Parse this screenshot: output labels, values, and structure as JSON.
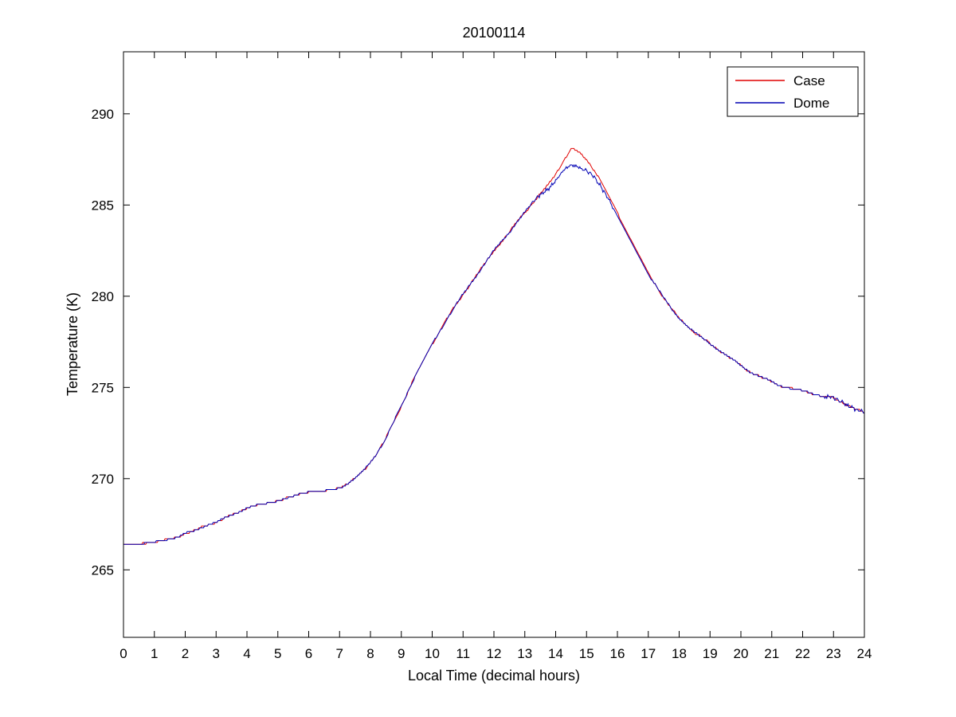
{
  "chart_data": {
    "type": "line",
    "title": "20100114",
    "xlabel": "Local Time (decimal hours)",
    "ylabel": "Temperature (K)",
    "xlim": [
      0,
      24
    ],
    "ylim": [
      261.3,
      293.4
    ],
    "grid": false,
    "quantization_step_k": 0.1,
    "xticks": [
      0,
      1,
      2,
      3,
      4,
      5,
      6,
      7,
      8,
      9,
      10,
      11,
      12,
      13,
      14,
      15,
      16,
      17,
      18,
      19,
      20,
      21,
      22,
      23,
      24
    ],
    "yticks": [
      265,
      270,
      275,
      280,
      285,
      290
    ],
    "legend": {
      "position": "top-right",
      "entries": [
        {
          "label": "Case",
          "color": "#e00000"
        },
        {
          "label": "Dome",
          "color": "#0000b4"
        }
      ]
    },
    "x": [
      0,
      0.25,
      0.5,
      0.75,
      1,
      1.25,
      1.5,
      1.75,
      2,
      2.25,
      2.5,
      2.75,
      3,
      3.25,
      3.5,
      3.75,
      4,
      4.25,
      4.5,
      4.75,
      5,
      5.25,
      5.5,
      5.75,
      6,
      6.25,
      6.5,
      6.75,
      7,
      7.25,
      7.5,
      7.75,
      8,
      8.25,
      8.5,
      8.75,
      9,
      9.25,
      9.5,
      9.75,
      10,
      10.25,
      10.5,
      10.75,
      11,
      11.25,
      11.5,
      11.75,
      12,
      12.25,
      12.5,
      12.75,
      13,
      13.25,
      13.5,
      13.75,
      14,
      14.25,
      14.5,
      14.75,
      15,
      15.25,
      15.5,
      15.75,
      16,
      16.25,
      16.5,
      16.75,
      17,
      17.25,
      17.5,
      17.75,
      18,
      18.25,
      18.5,
      18.75,
      19,
      19.25,
      19.5,
      19.75,
      20,
      20.25,
      20.5,
      20.75,
      21,
      21.25,
      21.5,
      21.75,
      22,
      22.25,
      22.5,
      22.75,
      23,
      23.25,
      23.5,
      23.75,
      24
    ],
    "series": [
      {
        "name": "Case",
        "color": "#e00000",
        "values": [
          266.4,
          266.4,
          266.4,
          266.5,
          266.5,
          266.6,
          266.7,
          266.8,
          267.0,
          267.1,
          267.3,
          267.5,
          267.6,
          267.8,
          268.0,
          268.2,
          268.4,
          268.5,
          268.6,
          268.7,
          268.8,
          268.9,
          269.0,
          269.2,
          269.3,
          269.3,
          269.3,
          269.4,
          269.5,
          269.7,
          270.0,
          270.4,
          270.9,
          271.5,
          272.2,
          273.1,
          274.0,
          274.9,
          275.8,
          276.6,
          277.4,
          278.1,
          278.8,
          279.5,
          280.1,
          280.7,
          281.3,
          281.9,
          282.5,
          283.0,
          283.5,
          284.1,
          284.6,
          285.1,
          285.6,
          286.1,
          286.7,
          287.4,
          288.1,
          287.9,
          287.5,
          286.9,
          286.2,
          285.4,
          284.6,
          283.7,
          282.9,
          282.1,
          281.3,
          280.6,
          279.9,
          279.3,
          278.8,
          278.4,
          278.0,
          277.7,
          277.4,
          277.1,
          276.8,
          276.5,
          276.2,
          275.9,
          275.7,
          275.5,
          275.3,
          275.1,
          275.0,
          274.9,
          274.8,
          274.7,
          274.6,
          274.5,
          274.4,
          274.2,
          274.0,
          273.8,
          273.6
        ]
      },
      {
        "name": "Dome",
        "color": "#0000b4",
        "values": [
          266.4,
          266.4,
          266.4,
          266.5,
          266.5,
          266.6,
          266.7,
          266.8,
          267.0,
          267.1,
          267.3,
          267.5,
          267.6,
          267.8,
          268.0,
          268.2,
          268.4,
          268.5,
          268.6,
          268.7,
          268.8,
          268.9,
          269.0,
          269.2,
          269.3,
          269.3,
          269.3,
          269.4,
          269.5,
          269.7,
          270.0,
          270.4,
          270.9,
          271.5,
          272.2,
          273.1,
          274.0,
          274.9,
          275.8,
          276.6,
          277.4,
          278.1,
          278.8,
          279.5,
          280.1,
          280.7,
          281.3,
          281.9,
          282.5,
          283.0,
          283.5,
          284.1,
          284.6,
          285.1,
          285.6,
          285.9,
          286.3,
          286.9,
          287.2,
          287.1,
          286.9,
          286.5,
          285.9,
          285.2,
          284.4,
          283.6,
          282.8,
          282.0,
          281.2,
          280.6,
          279.9,
          279.3,
          278.8,
          278.4,
          278.0,
          277.7,
          277.4,
          277.1,
          276.8,
          276.5,
          276.2,
          275.9,
          275.7,
          275.5,
          275.3,
          275.1,
          275.0,
          274.9,
          274.8,
          274.7,
          274.6,
          274.5,
          274.4,
          274.2,
          274.0,
          273.8,
          273.6
        ]
      }
    ]
  }
}
